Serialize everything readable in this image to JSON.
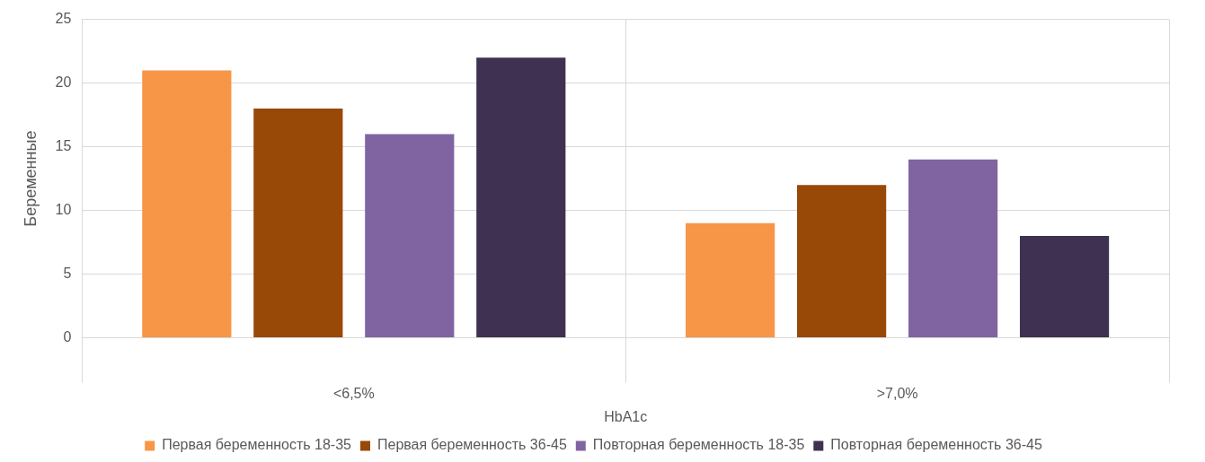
{
  "chart_data": {
    "type": "bar",
    "xlabel": "HbA1c",
    "ylabel": "Беременные",
    "categories": [
      "<6,5%",
      ">7,0%"
    ],
    "series": [
      {
        "name": "Первая беременность 18-35",
        "color": "#f79646",
        "values": [
          21,
          9
        ]
      },
      {
        "name": "Первая беременность 36-45",
        "color": "#984807",
        "values": [
          18,
          12
        ]
      },
      {
        "name": "Повторная беременность 18-35",
        "color": "#8064a2",
        "values": [
          16,
          14
        ]
      },
      {
        "name": "Повторная беременность 36-45",
        "color": "#3f3151",
        "values": [
          22,
          8
        ]
      }
    ],
    "ylim": [
      0,
      25
    ],
    "yticks": [
      0,
      5,
      10,
      15,
      20,
      25
    ],
    "grid": true,
    "legend": "bottom"
  }
}
